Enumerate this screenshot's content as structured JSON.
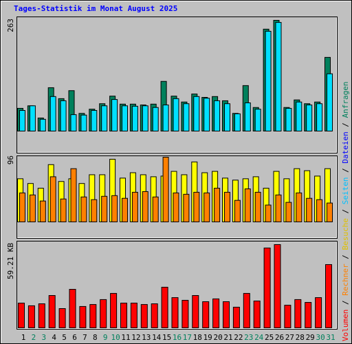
{
  "title": "Tages-Statistik im Monat August 2025",
  "side_legend": [
    {
      "text": "Volumen",
      "color": "#ff0000"
    },
    {
      "text": " / ",
      "color": "#000000"
    },
    {
      "text": "Rechner",
      "color": "#ff8000"
    },
    {
      "text": " / ",
      "color": "#000000"
    },
    {
      "text": "Besuche",
      "color": "#e0c000"
    },
    {
      "text": " / ",
      "color": "#000000"
    },
    {
      "text": "Seiten",
      "color": "#00c0ff"
    },
    {
      "text": " / ",
      "color": "#000000"
    },
    {
      "text": "Dateien",
      "color": "#0000ff"
    },
    {
      "text": " / ",
      "color": "#000000"
    },
    {
      "text": "Anfragen",
      "color": "#00805c"
    }
  ],
  "chart_data": [
    {
      "type": "bar",
      "categories": [
        "1",
        "2",
        "3",
        "4",
        "5",
        "6",
        "7",
        "8",
        "9",
        "10",
        "11",
        "12",
        "13",
        "14",
        "15",
        "16",
        "17",
        "18",
        "19",
        "20",
        "21",
        "22",
        "23",
        "24",
        "25",
        "26",
        "27",
        "28",
        "29",
        "30",
        "31"
      ],
      "category_colors": [
        "#000000",
        "#00805c",
        "#00805c",
        "#000000",
        "#000000",
        "#000000",
        "#000000",
        "#000000",
        "#00805c",
        "#00805c",
        "#000000",
        "#000000",
        "#000000",
        "#000000",
        "#000000",
        "#00805c",
        "#00805c",
        "#000000",
        "#000000",
        "#000000",
        "#000000",
        "#000000",
        "#00805c",
        "#00805c",
        "#000000",
        "#000000",
        "#000000",
        "#000000",
        "#000000",
        "#00805c",
        "#00805c"
      ],
      "ylim": [
        0,
        263
      ],
      "yticks": [
        263
      ],
      "series": [
        {
          "color": "#00805c",
          "values": [
            54,
            60,
            31,
            103,
            77,
            96,
            42,
            52,
            65,
            83,
            64,
            64,
            62,
            64,
            118,
            83,
            69,
            88,
            80,
            82,
            72,
            42,
            108,
            56,
            242,
            263,
            56,
            74,
            65,
            69,
            175
          ]
        },
        {
          "color": "#00e0ff",
          "values": [
            49,
            60,
            28,
            82,
            72,
            39,
            38,
            49,
            60,
            75,
            60,
            59,
            60,
            56,
            62,
            77,
            65,
            82,
            78,
            72,
            65,
            41,
            67,
            52,
            237,
            258,
            54,
            69,
            62,
            65,
            136
          ]
        }
      ]
    },
    {
      "type": "bar",
      "ylim": [
        0,
        96
      ],
      "yticks": [
        96
      ],
      "series": [
        {
          "color": "#ffff00",
          "values": [
            64,
            57,
            50,
            85,
            60,
            64,
            57,
            70,
            70,
            93,
            65,
            73,
            70,
            67,
            68,
            75,
            70,
            89,
            73,
            75,
            65,
            62,
            64,
            67,
            50,
            75,
            64,
            79,
            76,
            68,
            79
          ]
        },
        {
          "color": "#ff8000",
          "values": [
            43,
            40,
            31,
            67,
            34,
            79,
            37,
            33,
            38,
            39,
            35,
            44,
            45,
            37,
            96,
            43,
            41,
            44,
            43,
            50,
            44,
            32,
            49,
            44,
            25,
            40,
            29,
            43,
            35,
            33,
            28
          ]
        }
      ]
    },
    {
      "type": "bar",
      "ylim": [
        0,
        59.21
      ],
      "yticks": [
        {
          "value": 59.21,
          "label": "59.21 KB"
        }
      ],
      "series": [
        {
          "color": "#ff0000",
          "values": [
            17.6,
            15.7,
            17.1,
            23.0,
            13.7,
            27.4,
            15.2,
            16.6,
            20.1,
            24.5,
            17.6,
            17.6,
            16.6,
            17.1,
            28.9,
            21.5,
            19.6,
            23.0,
            18.6,
            20.6,
            18.6,
            14.7,
            24.5,
            19.1,
            56.8,
            59.21,
            16.1,
            20.1,
            18.1,
            21.5,
            45.0
          ]
        }
      ]
    }
  ]
}
